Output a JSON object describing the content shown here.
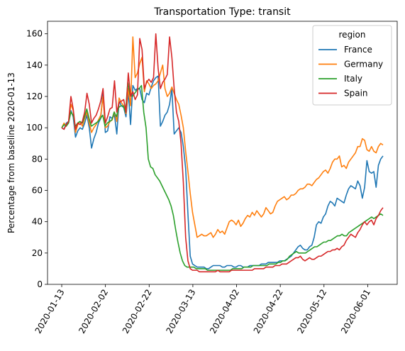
{
  "chart_data": {
    "type": "line",
    "title": "Transportation Type: transit",
    "xlabel": "",
    "ylabel": "Percentage from baseline 2020-01-13",
    "x_start": "2020-01-13",
    "x_end": "2020-06-08",
    "x_ticks": [
      "2020-01-13",
      "2020-02-02",
      "2020-02-22",
      "2020-03-13",
      "2020-04-02",
      "2020-04-22",
      "2020-05-12",
      "2020-06-01"
    ],
    "ylim": [
      0,
      168
    ],
    "y_ticks": [
      0,
      20,
      40,
      60,
      80,
      100,
      120,
      140,
      160
    ],
    "grid": false,
    "legend": {
      "title": "region",
      "placement": "top-right"
    },
    "series": [
      {
        "name": "France",
        "color": "#1f77b4",
        "values": [
          100,
          99,
          103,
          104,
          111,
          107,
          94,
          98,
          100,
          99,
          103,
          108,
          100,
          87,
          93,
          97,
          103,
          106,
          124,
          97,
          98,
          107,
          106,
          108,
          96,
          117,
          114,
          113,
          107,
          123,
          102,
          127,
          124,
          125,
          125,
          118,
          116,
          122,
          121,
          126,
          130,
          132,
          133,
          101,
          104,
          108,
          110,
          115,
          125,
          96,
          98,
          100,
          97,
          88,
          74,
          45,
          18,
          13,
          12,
          11,
          11,
          11,
          11,
          10,
          10,
          11,
          12,
          12,
          12,
          12,
          11,
          11,
          12,
          12,
          12,
          11,
          11,
          12,
          12,
          11,
          11,
          11,
          12,
          12,
          12,
          12,
          12,
          13,
          13,
          13,
          14,
          14,
          14,
          14,
          14,
          15,
          15,
          15,
          16,
          17,
          18,
          20,
          22,
          24,
          25,
          23,
          22,
          22,
          24,
          25,
          30,
          38,
          40,
          39,
          43,
          45,
          50,
          53,
          52,
          50,
          55,
          54,
          53,
          52,
          57,
          61,
          63,
          62,
          61,
          66,
          63,
          55,
          62,
          79,
          72,
          71,
          72,
          62,
          76,
          80,
          82
        ]
      },
      {
        "name": "Germany",
        "color": "#ff7f0e",
        "values": [
          100,
          103,
          101,
          104,
          115,
          111,
          97,
          102,
          104,
          101,
          106,
          110,
          103,
          97,
          100,
          102,
          105,
          108,
          120,
          100,
          101,
          104,
          105,
          110,
          104,
          119,
          116,
          114,
          109,
          125,
          114,
          158,
          132,
          135,
          141,
          145,
          123,
          130,
          128,
          125,
          127,
          128,
          130,
          135,
          140,
          125,
          120,
          122,
          126,
          122,
          118,
          115,
          108,
          100,
          85,
          72,
          58,
          46,
          38,
          30,
          31,
          32,
          31,
          31,
          32,
          33,
          30,
          32,
          35,
          33,
          34,
          32,
          36,
          40,
          41,
          40,
          38,
          41,
          37,
          39,
          42,
          44,
          43,
          46,
          44,
          47,
          45,
          43,
          45,
          49,
          47,
          45,
          46,
          50,
          53,
          54,
          55,
          56,
          54,
          55,
          57,
          57,
          58,
          60,
          61,
          61,
          62,
          64,
          64,
          63,
          65,
          67,
          68,
          70,
          72,
          73,
          71,
          74,
          78,
          80,
          80,
          82,
          75,
          76,
          74,
          78,
          80,
          82,
          84,
          88,
          88,
          93,
          92,
          86,
          85,
          88,
          85,
          84,
          88,
          90,
          89
        ]
      },
      {
        "name": "Italy",
        "color": "#2ca02c",
        "values": [
          100,
          102,
          101,
          103,
          110,
          108,
          101,
          103,
          104,
          103,
          107,
          112,
          106,
          101,
          102,
          103,
          104,
          106,
          108,
          101,
          103,
          104,
          105,
          110,
          107,
          113,
          114,
          114,
          110,
          129,
          121,
          120,
          122,
          124,
          125,
          127,
          110,
          100,
          80,
          75,
          74,
          70,
          68,
          66,
          63,
          60,
          57,
          54,
          50,
          44,
          35,
          27,
          20,
          15,
          12,
          11,
          11,
          11,
          11,
          10,
          10,
          10,
          10,
          10,
          9,
          9,
          9,
          9,
          9,
          9,
          9,
          9,
          9,
          9,
          9,
          10,
          10,
          10,
          10,
          10,
          11,
          11,
          11,
          11,
          12,
          12,
          12,
          12,
          12,
          12,
          12,
          13,
          13,
          13,
          13,
          14,
          14,
          15,
          15,
          16,
          18,
          19,
          20,
          21,
          20,
          20,
          20,
          20,
          21,
          22,
          23,
          24,
          24,
          25,
          26,
          27,
          27,
          28,
          28,
          29,
          30,
          31,
          31,
          32,
          31,
          31,
          33,
          34,
          35,
          36,
          37,
          38,
          39,
          40,
          41,
          42,
          43,
          42,
          43,
          44,
          45,
          44
        ]
      },
      {
        "name": "Spain",
        "color": "#d62728",
        "values": [
          100,
          99,
          102,
          104,
          120,
          112,
          99,
          103,
          102,
          104,
          110,
          122,
          115,
          103,
          106,
          108,
          112,
          117,
          125,
          103,
          107,
          112,
          113,
          130,
          110,
          116,
          117,
          118,
          110,
          135,
          120,
          123,
          118,
          121,
          157,
          150,
          125,
          129,
          131,
          129,
          132,
          160,
          138,
          125,
          129,
          131,
          134,
          158,
          145,
          125,
          110,
          104,
          90,
          65,
          30,
          15,
          10,
          9,
          9,
          9,
          8,
          8,
          8,
          8,
          8,
          8,
          8,
          8,
          9,
          8,
          8,
          8,
          8,
          8,
          9,
          9,
          9,
          9,
          9,
          9,
          9,
          9,
          9,
          9,
          10,
          10,
          10,
          10,
          10,
          11,
          11,
          11,
          11,
          12,
          12,
          12,
          13,
          13,
          13,
          14,
          15,
          16,
          17,
          17,
          18,
          16,
          15,
          16,
          17,
          16,
          16,
          17,
          18,
          18,
          19,
          20,
          21,
          21,
          22,
          22,
          23,
          22,
          24,
          25,
          28,
          30,
          32,
          31,
          30,
          33,
          35,
          38,
          40,
          38,
          40,
          41,
          38,
          42,
          44,
          47,
          49
        ]
      }
    ]
  }
}
